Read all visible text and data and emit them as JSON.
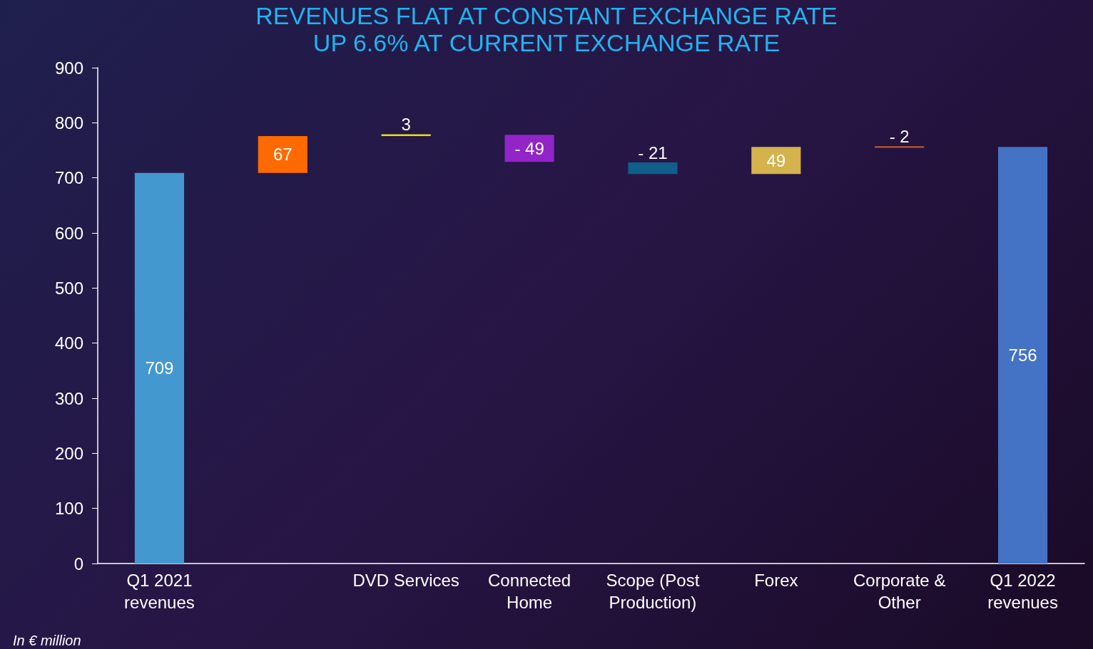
{
  "chart_data": {
    "type": "bar",
    "title": "REVENUES FLAT AT CONSTANT EXCHANGE RATE",
    "subtitle": "UP 6.6% AT CURRENT EXCHANGE RATE",
    "categories": [
      "Q1 2021\nrevenues",
      null,
      "DVD Services",
      "Connected\nHome",
      "Scope (Post\nProduction)",
      "Forex",
      "Corporate &\nOther",
      "Q1 2022\nrevenues"
    ],
    "values": [
      709,
      67,
      3,
      -49,
      -21,
      49,
      -2,
      756
    ],
    "base": [
      0,
      709,
      776,
      778,
      728,
      707,
      757,
      0
    ],
    "colors": [
      "#4399cf",
      "#ff6a00",
      "#e5e500",
      "#9224c8",
      "#0f5e8c",
      "#d4b24c",
      "#e8682a",
      "#4472c4"
    ],
    "value_labels": [
      "709",
      "67",
      "3",
      "- 49",
      "- 21",
      "49",
      "- 2",
      "756"
    ],
    "ylim": [
      0,
      900
    ],
    "yticks": [
      0,
      100,
      200,
      300,
      400,
      500,
      600,
      700,
      800,
      900
    ],
    "annotations": [
      "In € million"
    ]
  }
}
